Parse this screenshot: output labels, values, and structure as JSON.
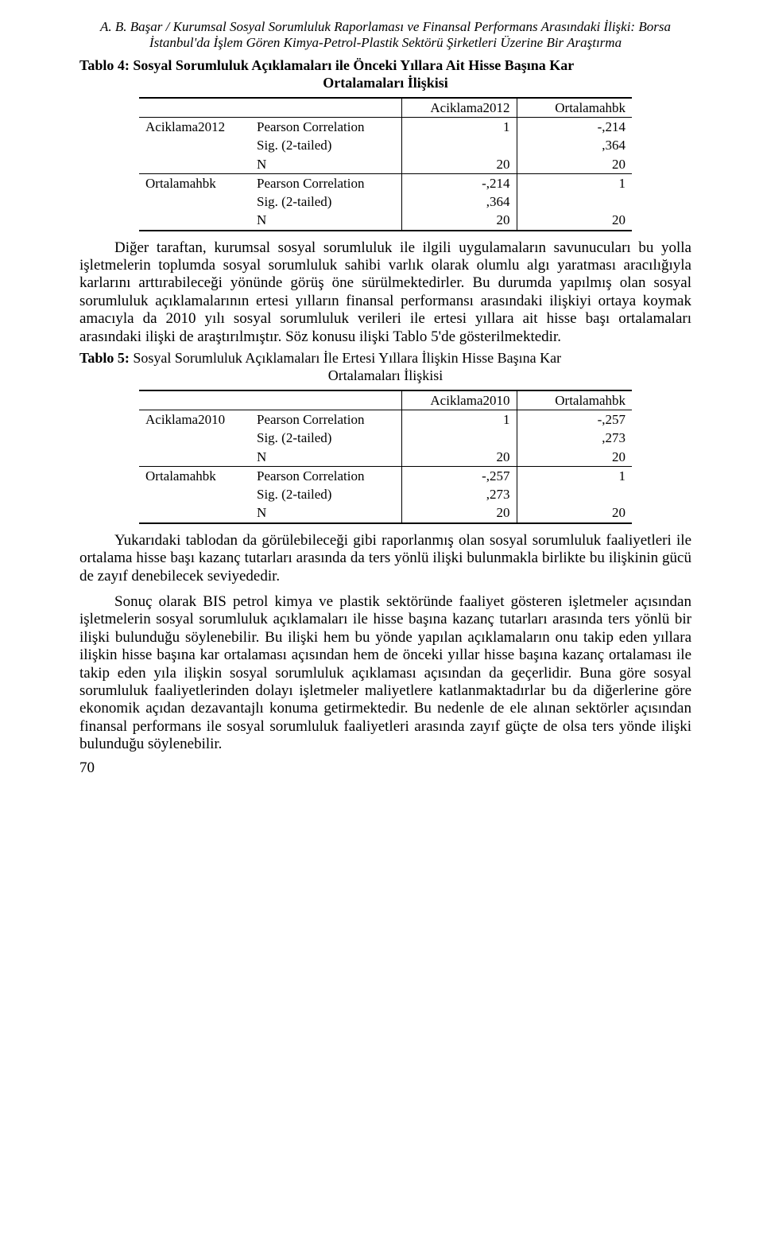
{
  "header": {
    "line1": "A. B. Başar / Kurumsal Sosyal Sorumluluk Raporlaması ve Finansal Performans Arasındaki İlişki: Borsa",
    "line2": "İstanbul'da İşlem Gören Kimya-Petrol-Plastik Sektörü Şirketleri Üzerine Bir Araştırma"
  },
  "table4": {
    "title_l1": "Tablo 4: Sosyal Sorumluluk Açıklamaları ile Önceki Yıllara Ait Hisse Başına Kar",
    "title_l2": "Ortalamaları İlişkisi",
    "col0": "",
    "col1": "",
    "col2": "Aciklama2012",
    "col3": "Ortalamahbk",
    "rows": [
      {
        "r1": "Aciklama2012",
        "r2": "Pearson Correlation",
        "v1": "1",
        "v2": "-,214"
      },
      {
        "r1": "",
        "r2": "Sig. (2-tailed)",
        "v1": "",
        "v2": ",364"
      },
      {
        "r1": "",
        "r2": "N",
        "v1": "20",
        "v2": "20"
      },
      {
        "r1": "Ortalamahbk",
        "r2": "Pearson Correlation",
        "v1": "-,214",
        "v2": "1"
      },
      {
        "r1": "",
        "r2": "Sig. (2-tailed)",
        "v1": ",364",
        "v2": ""
      },
      {
        "r1": "",
        "r2": "N",
        "v1": "20",
        "v2": "20"
      }
    ]
  },
  "para1": "Diğer taraftan, kurumsal sosyal sorumluluk ile ilgili uygulamaların savunucuları bu yolla işletmelerin toplumda sosyal sorumluluk sahibi varlık olarak olumlu algı yaratması aracılığıyla karlarını arttırabileceği yönünde görüş öne sürülmektedirler. Bu durumda yapılmış olan sosyal sorumluluk açıklamalarının ertesi yılların finansal performansı arasındaki ilişkiyi ortaya koymak amacıyla da 2010 yılı sosyal sorumluluk verileri ile ertesi yıllara ait hisse başı ortalamaları arasındaki ilişki de araştırılmıştır. Söz konusu ilişki Tablo 5'de gösterilmektedir.",
  "table5": {
    "title_l1_bold": "Tablo 5:",
    "title_l1_rest": " Sosyal Sorumluluk Açıklamaları İle Ertesi Yıllara İlişkin Hisse Başına Kar",
    "title_l2": "Ortalamaları İlişkisi",
    "col2": "Aciklama2010",
    "col3": "Ortalamahbk",
    "rows": [
      {
        "r1": "Aciklama2010",
        "r2": "Pearson Correlation",
        "v1": "1",
        "v2": "-,257"
      },
      {
        "r1": "",
        "r2": "Sig. (2-tailed)",
        "v1": "",
        "v2": ",273"
      },
      {
        "r1": "",
        "r2": "N",
        "v1": "20",
        "v2": "20"
      },
      {
        "r1": "Ortalamahbk",
        "r2": "Pearson Correlation",
        "v1": "-,257",
        "v2": "1"
      },
      {
        "r1": "",
        "r2": "Sig. (2-tailed)",
        "v1": ",273",
        "v2": ""
      },
      {
        "r1": "",
        "r2": "N",
        "v1": "20",
        "v2": "20"
      }
    ]
  },
  "para2": "Yukarıdaki tablodan da görülebileceği gibi raporlanmış olan sosyal sorumluluk faaliyetleri ile ortalama hisse başı kazanç tutarları arasında da ters yönlü ilişki bulunmakla birlikte bu ilişkinin gücü de zayıf denebilecek seviyededir.",
  "para3": "Sonuç olarak BIS petrol kimya ve plastik sektöründe faaliyet gösteren işletmeler açısından işletmelerin sosyal sorumluluk açıklamaları ile hisse başına kazanç tutarları arasında ters yönlü bir ilişki bulunduğu söylenebilir. Bu ilişki hem bu yönde yapılan açıklamaların onu takip eden yıllara ilişkin hisse başına kar ortalaması açısından hem de önceki yıllar hisse başına kazanç ortalaması ile takip eden yıla ilişkin sosyal sorumluluk açıklaması açısından da geçerlidir. Buna göre sosyal sorumluluk faaliyetlerinden dolayı işletmeler maliyetlere katlanmaktadırlar bu da diğerlerine göre ekonomik açıdan dezavantajlı konuma getirmektedir. Bu nedenle de ele alınan sektörler açısından finansal performans ile sosyal sorumluluk faaliyetleri arasında zayıf güçte de olsa  ters yönde  ilişki bulunduğu söylenebilir.",
  "pageNumber": "70"
}
